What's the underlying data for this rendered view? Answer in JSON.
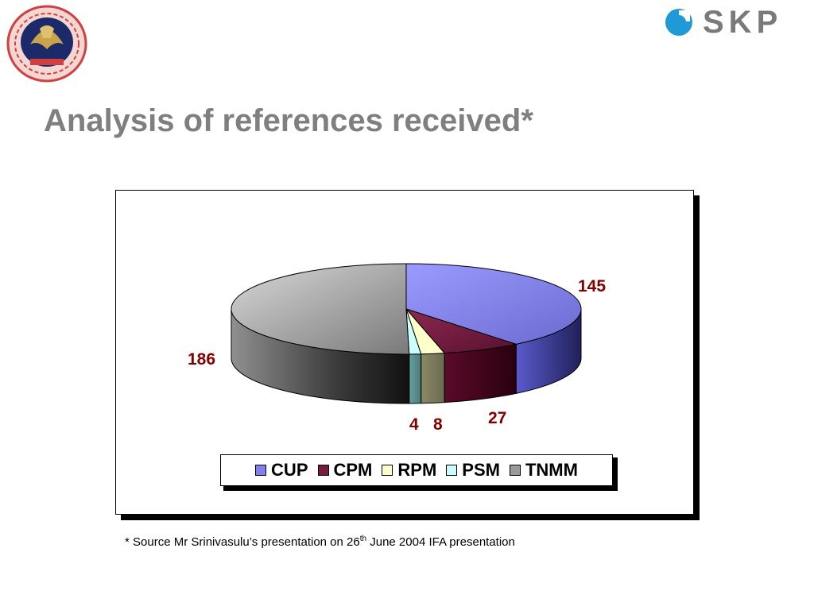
{
  "header": {
    "brand": "SKP"
  },
  "slide": {
    "title": "Analysis of references received*"
  },
  "footnote": {
    "before": "* Source Mr Srinivasulu’s presentation on 26",
    "sup": "th",
    "after": " June 2004 IFA presentation"
  },
  "colors": {
    "label_text": "#800000",
    "title_text": "#7f7f7f",
    "brand_text": "#7a7a7a",
    "brand_mark": "#1f9ad6"
  },
  "chart_data": {
    "type": "pie",
    "title": "",
    "three_d": true,
    "legend_position": "bottom",
    "slices": [
      {
        "name": "CUP",
        "value": 145,
        "color": "#8080f0"
      },
      {
        "name": "CPM",
        "value": 27,
        "color": "#7a1a40"
      },
      {
        "name": "RPM",
        "value": 8,
        "color": "#ffffcc"
      },
      {
        "name": "PSM",
        "value": 4,
        "color": "#ccffff"
      },
      {
        "name": "TNMM",
        "value": 186,
        "color": "#9a9a9a"
      }
    ]
  }
}
